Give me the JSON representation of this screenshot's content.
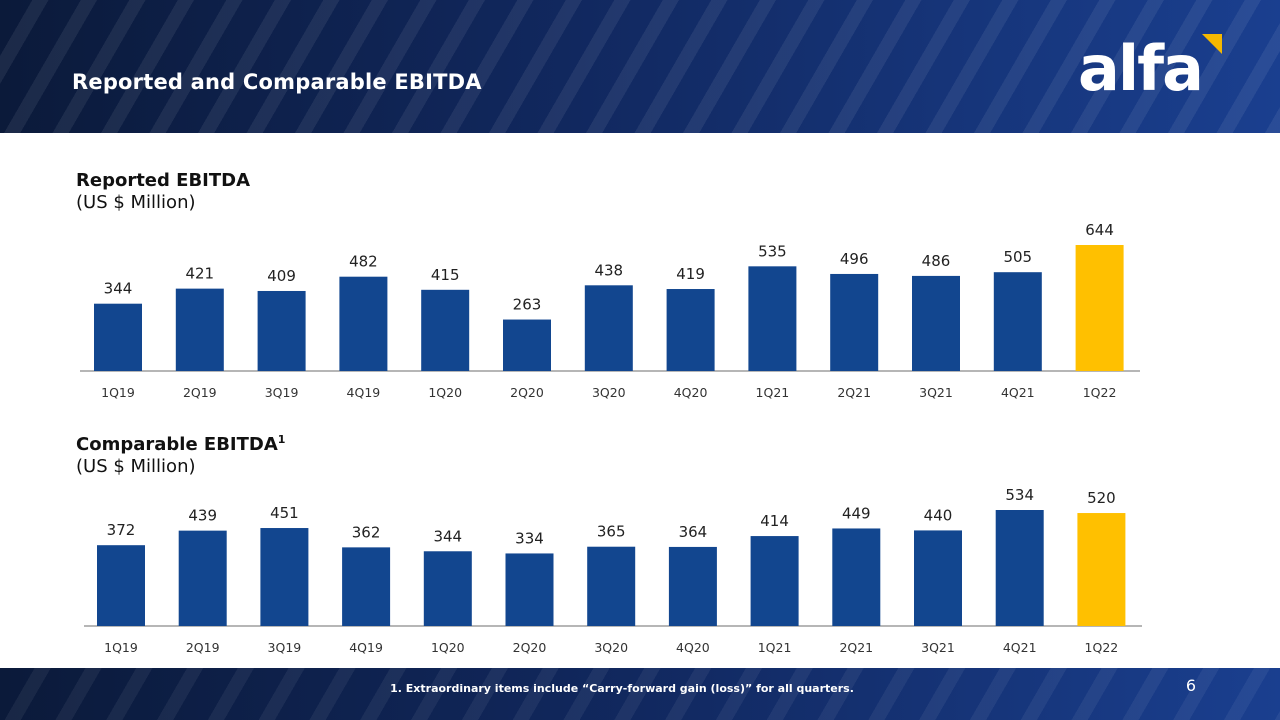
{
  "header": {
    "title": "Reported and Comparable EBITDA",
    "logo_text": "alfa"
  },
  "colors": {
    "bar": "#12468f",
    "highlight": "#ffc000",
    "axis": "#8a8a8a"
  },
  "chart_data": [
    {
      "type": "bar",
      "title": "Reported EBITDA",
      "subtitle": "(US $ Million)",
      "categories": [
        "1Q19",
        "2Q19",
        "3Q19",
        "4Q19",
        "1Q20",
        "2Q20",
        "3Q20",
        "4Q20",
        "1Q21",
        "2Q21",
        "3Q21",
        "4Q21",
        "1Q22"
      ],
      "values": [
        344,
        421,
        409,
        482,
        415,
        263,
        438,
        419,
        535,
        496,
        486,
        505,
        644
      ],
      "highlight_index": 12,
      "ylim": [
        0,
        644
      ],
      "data_labels": true,
      "grid": false
    },
    {
      "type": "bar",
      "title": "Comparable EBITDA",
      "title_superscript": "1",
      "subtitle": "(US $ Million)",
      "categories": [
        "1Q19",
        "2Q19",
        "3Q19",
        "4Q19",
        "1Q20",
        "2Q20",
        "3Q20",
        "4Q20",
        "1Q21",
        "2Q21",
        "3Q21",
        "4Q21",
        "1Q22"
      ],
      "values": [
        372,
        439,
        451,
        362,
        344,
        334,
        365,
        364,
        414,
        449,
        440,
        534,
        520
      ],
      "highlight_index": 12,
      "ylim": [
        0,
        534
      ],
      "data_labels": true,
      "grid": false
    }
  ],
  "footer": {
    "footnote": "1. Extraordinary items include “Carry-forward gain (loss)” for all quarters.",
    "page_number": "6"
  }
}
